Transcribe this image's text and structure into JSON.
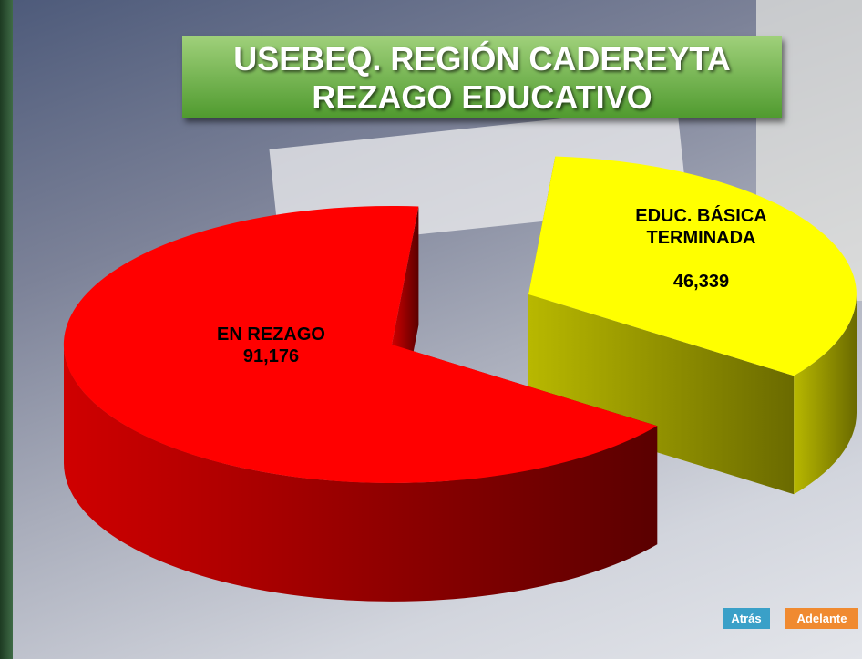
{
  "chart_data": {
    "type": "pie",
    "title": [
      "USEBEQ. REGIÓN CADEREYTA",
      "REZAGO EDUCATIVO"
    ],
    "categories": [
      "EN REZAGO",
      "EDUC. BÁSICA TERMINADA"
    ],
    "values": [
      91176,
      46339
    ],
    "value_labels": [
      "91,176",
      "46,339"
    ],
    "colors": [
      "#ff0000",
      "#ffff00"
    ]
  },
  "buttons": [
    "Atrás",
    "Adelante"
  ]
}
